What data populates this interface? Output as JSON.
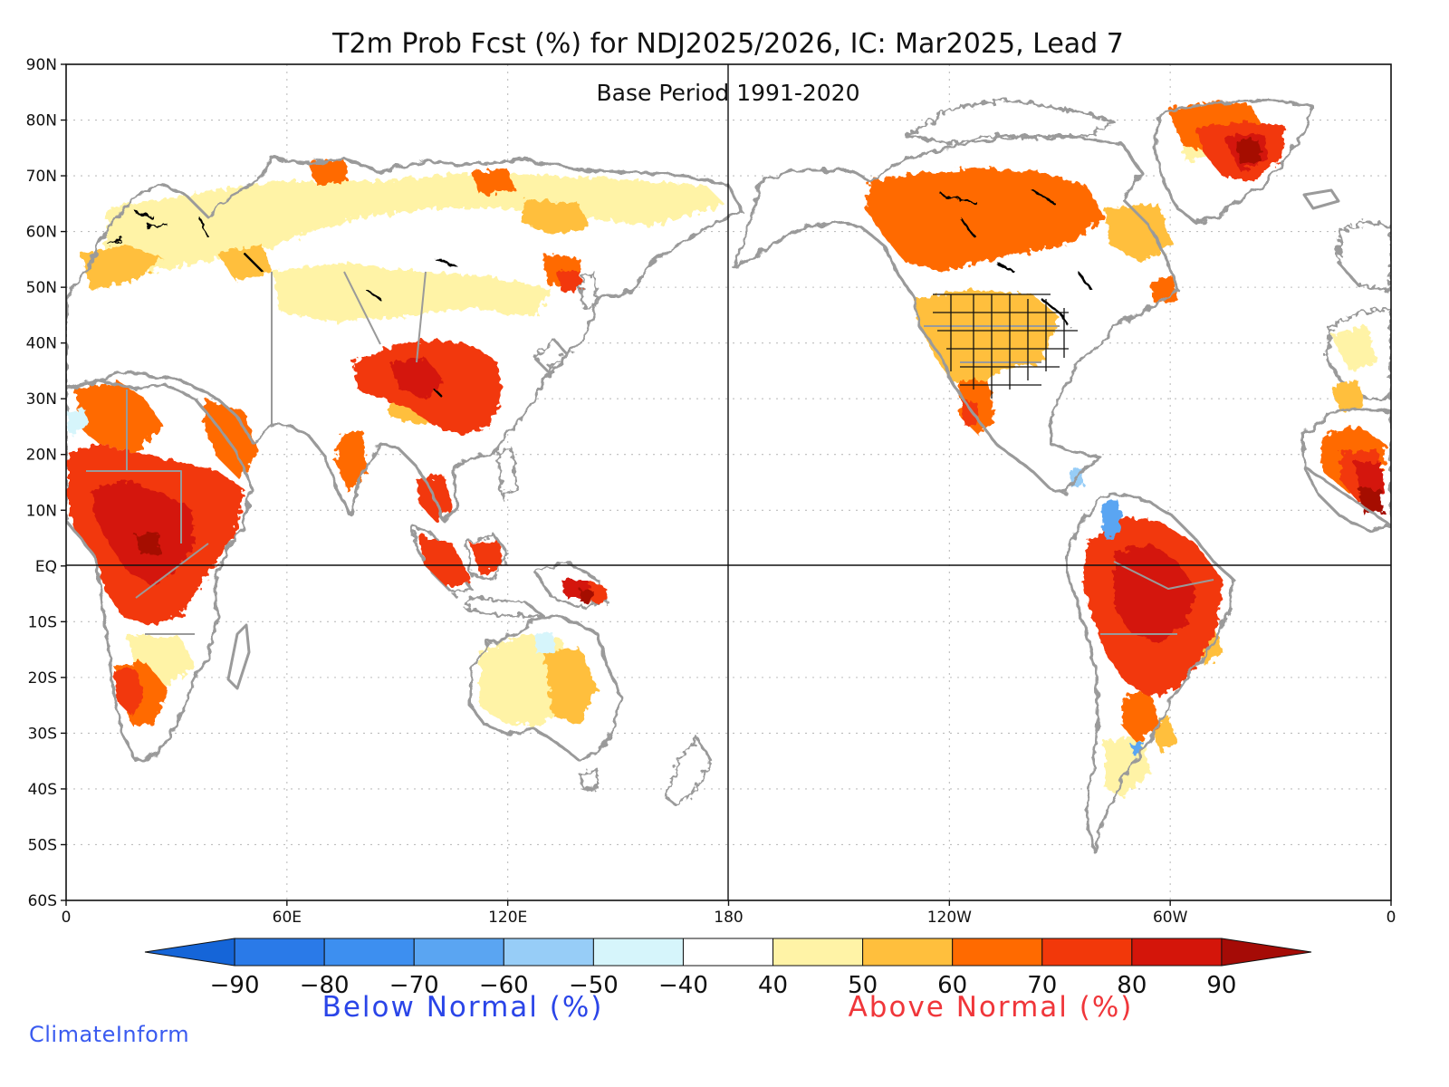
{
  "title": "T2m Prob Fcst (%) for NDJ2025/2026, IC: Mar2025, Lead 7",
  "subtitle": "Base Period 1991-2020",
  "lat_labels": [
    "90N",
    "80N",
    "70N",
    "60N",
    "50N",
    "40N",
    "30N",
    "20N",
    "10N",
    "EQ",
    "10S",
    "20S",
    "30S",
    "40S",
    "50S",
    "60S"
  ],
  "lon_labels": [
    "0",
    "60E",
    "120E",
    "180",
    "120W",
    "60W",
    "0"
  ],
  "colorbar": {
    "tick_labels": [
      "-90",
      "-80",
      "-70",
      "-60",
      "-50",
      "-40",
      "40",
      "50",
      "60",
      "70",
      "80",
      "90"
    ],
    "below_label": "Below Normal (%)",
    "above_label": "Above Normal (%)",
    "colors": [
      "#1565d8",
      "#2a7ae8",
      "#3d8ff0",
      "#5aa5f2",
      "#97cdf7",
      "#d6f5fb",
      "#ffffff",
      "#fff3a6",
      "#ffbf3d",
      "#ff6a00",
      "#f2380a",
      "#d4150a",
      "#a50b06"
    ]
  },
  "below_color": "#2a45e8",
  "above_color": "#f0363a",
  "brand": "ClimateInform",
  "map_colors": {
    "land_outline": "#9a9a9a",
    "lakes": "#000000",
    "grid": "#bdbdbd",
    "ocean": "#ffffff"
  }
}
